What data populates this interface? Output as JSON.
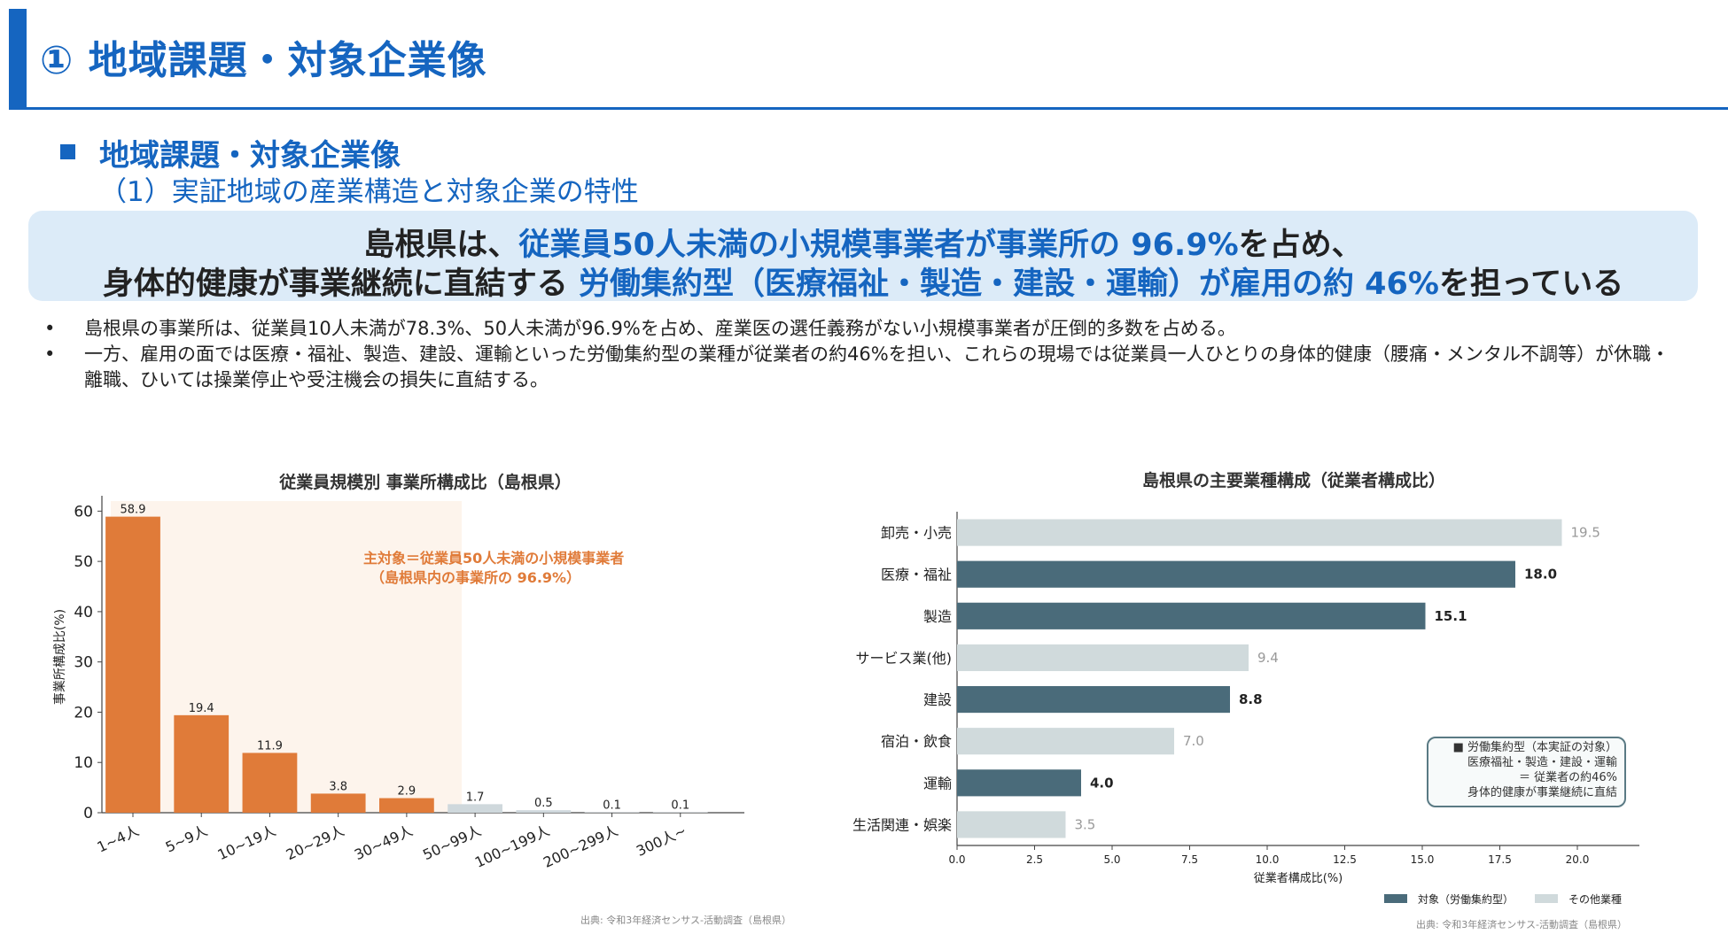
{
  "header": {
    "title": "① 地域課題・対象企業像"
  },
  "section": {
    "title": "地域課題・対象企業像",
    "subtitle": "（1）実証地域の産業構造と対象企業の特性"
  },
  "callout": {
    "line1_a": "島根県は、",
    "line1_b": "従業員50人未満の小規模事業者が事業所の 96.9%",
    "line1_c": "を占め、",
    "line2_a": "身体的健康が事業継続に直結する ",
    "line2_b": "労働集約型（医療福祉・製造・建設・運輸）が雇用の約 46%",
    "line2_c": "を担っている"
  },
  "bullets": [
    {
      "mark": "•",
      "text": "島根県の事業所は、従業員10人未満が78.3%、50人未満が96.9%を占め、産業医の選任義務がない小規模事業者が圧倒的多数を占める。"
    },
    {
      "mark": "•",
      "text": "一方、雇用の面では医療・福祉、製造、建設、運輸といった労働集約型の業種が従業者の約46%を担い、これらの現場では従業員一人ひとりの身体的健康（腰痛・メンタル不調等）が休職・離職、ひいては操業停止や受注機会の損失に直結する。"
    }
  ],
  "chart_data": [
    {
      "type": "bar",
      "title": "従業員規模別 事業所構成比（島根県）",
      "ylabel": "事業所構成比(%)",
      "ylim": [
        0,
        62
      ],
      "yticks": [
        0,
        10,
        20,
        30,
        40,
        50,
        60
      ],
      "categories": [
        "1~4人",
        "5~9人",
        "10~19人",
        "20~29人",
        "30~49人",
        "50~99人",
        "100~199人",
        "200~299人",
        "300人~"
      ],
      "values": [
        58.9,
        19.4,
        11.9,
        3.8,
        2.9,
        1.7,
        0.5,
        0.1,
        0.1
      ],
      "highlighted": [
        true,
        true,
        true,
        true,
        true,
        false,
        false,
        false,
        false
      ],
      "colors": {
        "highlight": "#e07b39",
        "other": "#cfd8dc",
        "band": "#fdf4ec"
      },
      "annotation": [
        "主対象＝従業員50人未満の小規模事業者",
        "（島根県内の事業所の 96.9%）"
      ],
      "source": "出典: 令和3年経済センサス-活動調査（島根県）"
    },
    {
      "type": "bar",
      "orientation": "horizontal",
      "title": "島根県の主要業種構成（従業者構成比）",
      "xlabel": "従業者構成比(%)",
      "xlim": [
        0,
        22
      ],
      "xticks": [
        0.0,
        2.5,
        5.0,
        7.5,
        10.0,
        12.5,
        15.0,
        17.5,
        20.0
      ],
      "categories": [
        "卸売・小売",
        "医療・福祉",
        "製造",
        "サービス業(他)",
        "建設",
        "宿泊・飲食",
        "運輸",
        "生活関連・娯楽"
      ],
      "values": [
        19.5,
        18.0,
        15.1,
        9.4,
        8.8,
        7.0,
        4.0,
        3.5
      ],
      "target": [
        false,
        true,
        true,
        false,
        true,
        false,
        true,
        false
      ],
      "colors": {
        "target": "#4a6b7a",
        "other": "#d0dadc"
      },
      "legend": [
        "対象（労働集約型）",
        "その他業種"
      ],
      "box_text": [
        "■ 労働集約型（本実証の対象）",
        "医療福祉・製造・建設・運輸",
        "＝ 従業者の約46%",
        "身体的健康が事業継続に直結"
      ],
      "source": "出典: 令和3年経済センサス-活動調査（島根県）"
    }
  ]
}
